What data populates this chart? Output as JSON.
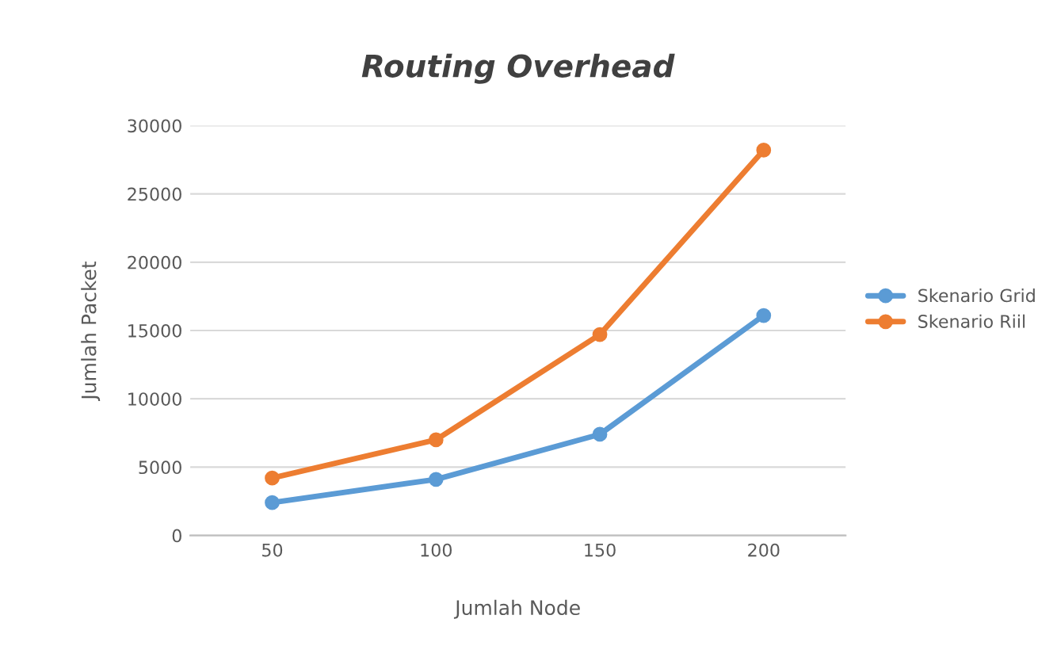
{
  "chart_data": {
    "type": "line",
    "title": "Routing Overhead",
    "xlabel": "Jumlah Node",
    "ylabel": "Jumlah Packet",
    "categories": [
      "50",
      "100",
      "150",
      "200"
    ],
    "series": [
      {
        "name": "Skenario Grid",
        "color": "#5b9bd5",
        "values": [
          2400,
          4100,
          7400,
          16100
        ]
      },
      {
        "name": "Skenario Riil",
        "color": "#ed7d31",
        "values": [
          4200,
          7000,
          14700,
          28200
        ]
      }
    ],
    "ylim": [
      0,
      30000
    ],
    "yticks": [
      0,
      5000,
      10000,
      15000,
      20000,
      25000,
      30000
    ],
    "grid": "y",
    "legend": "right",
    "marker": "circle",
    "line_style": "solid"
  }
}
